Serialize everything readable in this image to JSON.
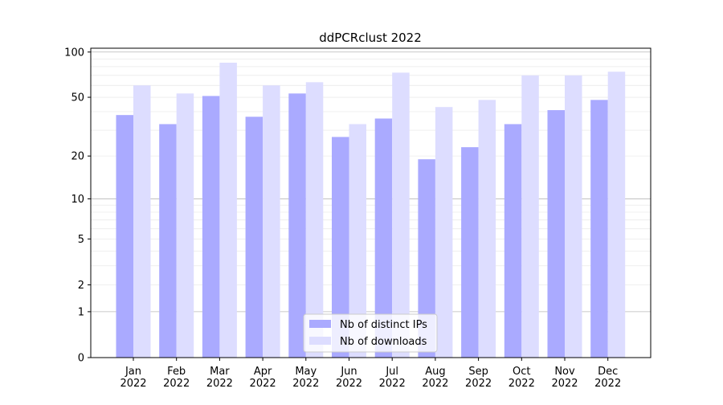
{
  "chart_data": {
    "type": "bar",
    "title": "ddPCRclust 2022",
    "xlabel": "",
    "ylabel": "",
    "yscale": "log(y+1)",
    "ylim": [
      0,
      106
    ],
    "yticks": [
      0,
      1,
      2,
      5,
      10,
      20,
      50,
      100
    ],
    "grid": true,
    "legend_position": "bottom-center",
    "categories": [
      [
        "Jan",
        "2022"
      ],
      [
        "Feb",
        "2022"
      ],
      [
        "Mar",
        "2022"
      ],
      [
        "Apr",
        "2022"
      ],
      [
        "May",
        "2022"
      ],
      [
        "Jun",
        "2022"
      ],
      [
        "Jul",
        "2022"
      ],
      [
        "Aug",
        "2022"
      ],
      [
        "Sep",
        "2022"
      ],
      [
        "Oct",
        "2022"
      ],
      [
        "Nov",
        "2022"
      ],
      [
        "Dec",
        "2022"
      ]
    ],
    "series": [
      {
        "name": "Nb of distinct IPs",
        "color": "#aaaaff",
        "values": [
          38,
          33,
          51,
          37,
          53,
          27,
          36,
          19,
          23,
          33,
          41,
          48
        ]
      },
      {
        "name": "Nb of downloads",
        "color": "#ddddff",
        "values": [
          60,
          53,
          85,
          60,
          63,
          33,
          73,
          43,
          48,
          70,
          70,
          74
        ]
      }
    ]
  }
}
